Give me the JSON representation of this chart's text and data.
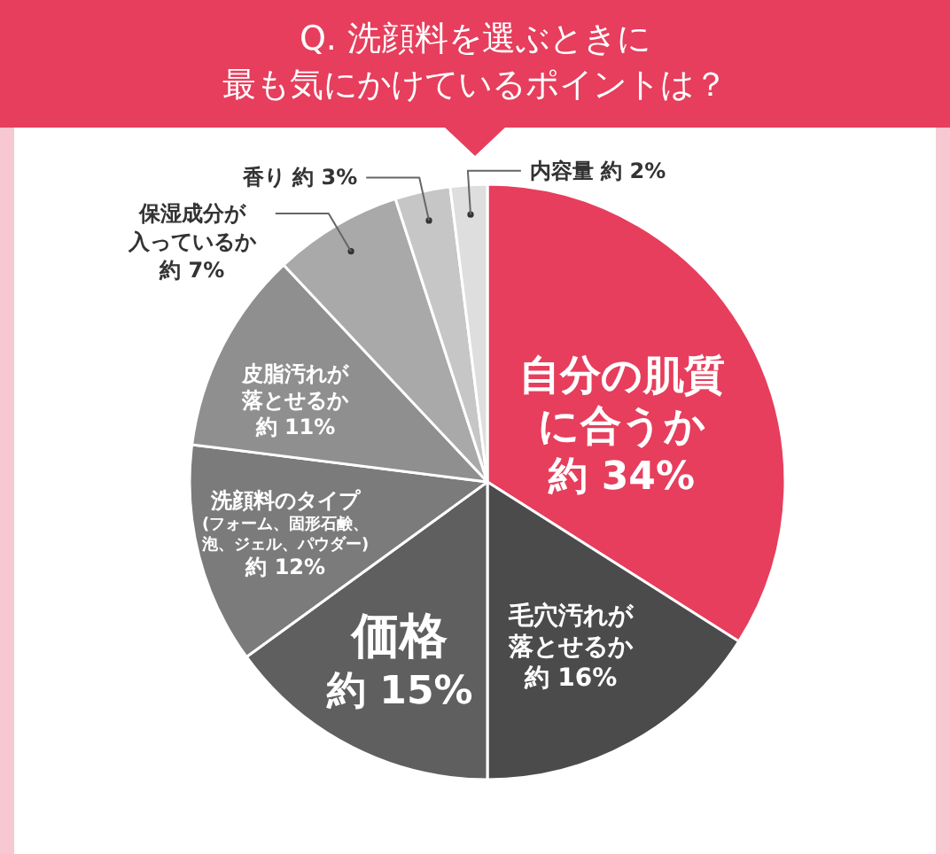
{
  "chart_data": {
    "type": "pie",
    "title": "Q. 洗顔料を選ぶときに最も気にかけているポイントは？",
    "categories": [
      "自分の肌質に合うか",
      "毛穴汚れが落とせるか",
      "価格",
      "洗顔料のタイプ(フォーム、固形石鹸、泡、ジェル、パウダー)",
      "皮脂汚れが落とせるか",
      "保湿成分が入っているか",
      "香り",
      "内容量"
    ],
    "values": [
      34,
      16,
      15,
      12,
      11,
      7,
      3,
      2
    ],
    "colors": [
      "#e63e5c",
      "#4b4b4b",
      "#5f5f5f",
      "#7b7b7b",
      "#8f8f8f",
      "#a9a9a9",
      "#c6c6c6",
      "#dedede"
    ],
    "value_labels": [
      "約 34%",
      "約 16%",
      "約 15%",
      "約 12%",
      "約 11%",
      "約 7%",
      "約 3%",
      "約 2%"
    ]
  }
}
